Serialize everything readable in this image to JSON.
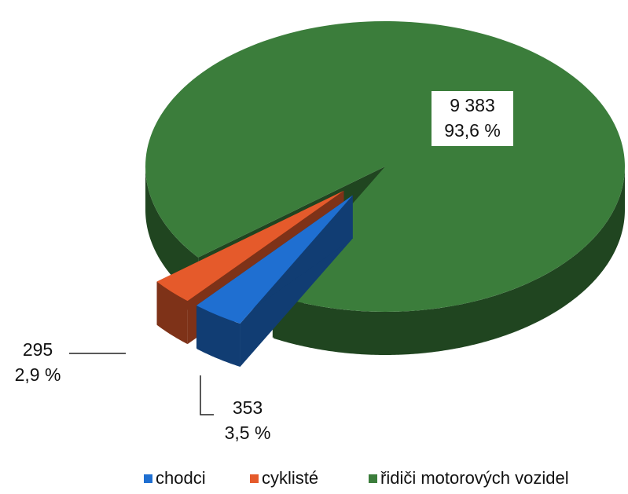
{
  "chart_data": {
    "type": "pie",
    "categories": [
      "chodci",
      "cyklisté",
      "řidiči motorových vozidel"
    ],
    "values": [
      353,
      295,
      9383
    ],
    "value_labels": [
      "353",
      "295",
      "9 383"
    ],
    "percents": [
      3.5,
      2.9,
      93.6
    ],
    "percent_labels": [
      "3,5 %",
      "2,9 %",
      "93,6 %"
    ],
    "colors": [
      "#1f6fd1",
      "#e55a2b",
      "#3b7d3b"
    ],
    "legend": "bottom"
  }
}
